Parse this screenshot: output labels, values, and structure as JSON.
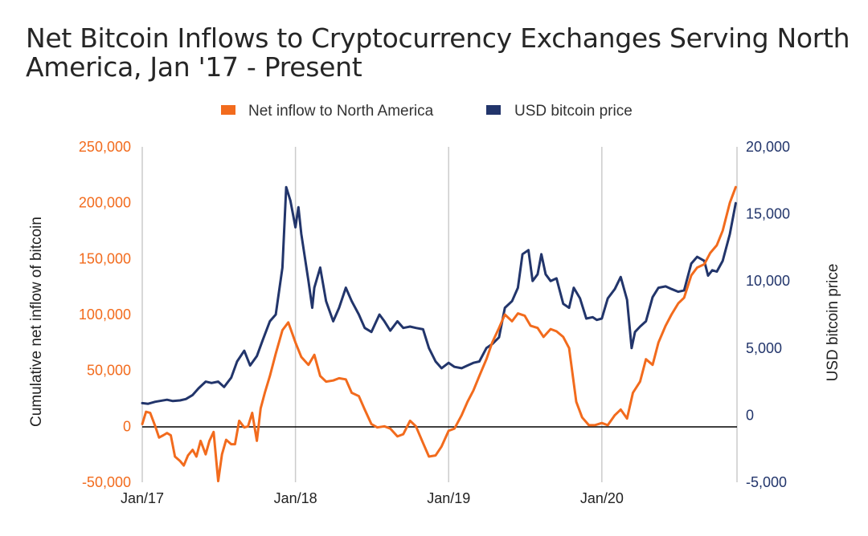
{
  "chart_data": {
    "type": "line",
    "title_lines": [
      "Net Bitcoin Inflows to Cryptocurrency Exchanges Serving North",
      "America, Jan '17 - Present"
    ],
    "x_ticks": [
      "Jan/17",
      "Jan/18",
      "Jan/19",
      "Jan/20"
    ],
    "y_left": {
      "label": "Cumulative net inflow of bitcoin",
      "ticks": [
        "-50,000",
        "0",
        "50,000",
        "100,000",
        "150,000",
        "200,000",
        "250,000"
      ],
      "range": [
        -50000,
        250000
      ]
    },
    "y_right": {
      "label": "USD bitcoin price",
      "ticks": [
        "-5,000",
        "0",
        "5,000",
        "10,000",
        "15,000",
        "20,000"
      ],
      "range": [
        -5000,
        20000
      ]
    },
    "legend_position": "top-center",
    "grid": "vertical",
    "colors": {
      "inflow": "#f26b1d",
      "price": "#22356b",
      "zero_line": "#000000",
      "grid": "#cccccc"
    },
    "series": [
      {
        "name": "Net inflow to North America",
        "axis": "left",
        "points": [
          [
            "2017-01-01",
            2000
          ],
          [
            "2017-01-10",
            13000
          ],
          [
            "2017-01-20",
            12000
          ],
          [
            "2017-02-01",
            0
          ],
          [
            "2017-02-10",
            -10000
          ],
          [
            "2017-02-20",
            -8000
          ],
          [
            "2017-03-01",
            -6000
          ],
          [
            "2017-03-10",
            -8000
          ],
          [
            "2017-03-20",
            -27000
          ],
          [
            "2017-04-01",
            -31000
          ],
          [
            "2017-04-10",
            -35000
          ],
          [
            "2017-04-20",
            -26000
          ],
          [
            "2017-05-01",
            -21000
          ],
          [
            "2017-05-10",
            -27000
          ],
          [
            "2017-05-20",
            -13000
          ],
          [
            "2017-06-01",
            -25000
          ],
          [
            "2017-06-10",
            -13000
          ],
          [
            "2017-06-20",
            -5000
          ],
          [
            "2017-07-01",
            -49000
          ],
          [
            "2017-07-10",
            -25000
          ],
          [
            "2017-07-20",
            -12000
          ],
          [
            "2017-08-01",
            -16000
          ],
          [
            "2017-08-10",
            -16000
          ],
          [
            "2017-08-20",
            5000
          ],
          [
            "2017-09-01",
            -1000
          ],
          [
            "2017-09-10",
            0
          ],
          [
            "2017-09-20",
            12000
          ],
          [
            "2017-10-01",
            -13000
          ],
          [
            "2017-10-10",
            16000
          ],
          [
            "2017-10-20",
            30000
          ],
          [
            "2017-11-01",
            45000
          ],
          [
            "2017-11-15",
            65000
          ],
          [
            "2017-12-01",
            86000
          ],
          [
            "2017-12-15",
            93000
          ],
          [
            "2018-01-01",
            75000
          ],
          [
            "2018-01-15",
            62000
          ],
          [
            "2018-02-01",
            55000
          ],
          [
            "2018-02-15",
            64000
          ],
          [
            "2018-03-01",
            45000
          ],
          [
            "2018-03-15",
            40000
          ],
          [
            "2018-04-01",
            41000
          ],
          [
            "2018-04-15",
            43000
          ],
          [
            "2018-05-01",
            42000
          ],
          [
            "2018-05-15",
            30000
          ],
          [
            "2018-06-01",
            27000
          ],
          [
            "2018-06-15",
            15000
          ],
          [
            "2018-07-01",
            2000
          ],
          [
            "2018-07-15",
            -1000
          ],
          [
            "2018-08-01",
            0
          ],
          [
            "2018-08-15",
            -2000
          ],
          [
            "2018-09-01",
            -9000
          ],
          [
            "2018-09-15",
            -7000
          ],
          [
            "2018-10-01",
            5000
          ],
          [
            "2018-10-15",
            0
          ],
          [
            "2018-11-01",
            -15000
          ],
          [
            "2018-11-15",
            -27000
          ],
          [
            "2018-12-01",
            -26000
          ],
          [
            "2018-12-15",
            -18000
          ],
          [
            "2019-01-01",
            -4000
          ],
          [
            "2019-01-15",
            -2000
          ],
          [
            "2019-02-01",
            10000
          ],
          [
            "2019-02-15",
            22000
          ],
          [
            "2019-03-01",
            32000
          ],
          [
            "2019-03-15",
            45000
          ],
          [
            "2019-04-01",
            60000
          ],
          [
            "2019-04-15",
            75000
          ],
          [
            "2019-05-01",
            88000
          ],
          [
            "2019-05-15",
            100000
          ],
          [
            "2019-06-01",
            94000
          ],
          [
            "2019-06-15",
            101000
          ],
          [
            "2019-07-01",
            99000
          ],
          [
            "2019-07-15",
            90000
          ],
          [
            "2019-08-01",
            88000
          ],
          [
            "2019-08-15",
            80000
          ],
          [
            "2019-09-01",
            87000
          ],
          [
            "2019-09-15",
            85000
          ],
          [
            "2019-10-01",
            80000
          ],
          [
            "2019-10-15",
            70000
          ],
          [
            "2019-11-01",
            22000
          ],
          [
            "2019-11-15",
            8000
          ],
          [
            "2019-12-01",
            1000
          ],
          [
            "2019-12-15",
            1000
          ],
          [
            "2020-01-01",
            3000
          ],
          [
            "2020-01-15",
            1000
          ],
          [
            "2020-02-01",
            10000
          ],
          [
            "2020-02-15",
            15000
          ],
          [
            "2020-03-01",
            7000
          ],
          [
            "2020-03-15",
            30000
          ],
          [
            "2020-04-01",
            40000
          ],
          [
            "2020-04-15",
            60000
          ],
          [
            "2020-05-01",
            55000
          ],
          [
            "2020-05-15",
            75000
          ],
          [
            "2020-06-01",
            90000
          ],
          [
            "2020-06-15",
            100000
          ],
          [
            "2020-07-01",
            110000
          ],
          [
            "2020-07-15",
            115000
          ],
          [
            "2020-08-01",
            135000
          ],
          [
            "2020-08-15",
            142000
          ],
          [
            "2020-09-01",
            145000
          ],
          [
            "2020-09-15",
            155000
          ],
          [
            "2020-10-01",
            162000
          ],
          [
            "2020-10-15",
            175000
          ],
          [
            "2020-11-01",
            200000
          ],
          [
            "2020-11-15",
            214000
          ]
        ]
      },
      {
        "name": "USD bitcoin price",
        "axis": "right",
        "points": [
          [
            "2017-01-01",
            900
          ],
          [
            "2017-01-15",
            850
          ],
          [
            "2017-02-01",
            1000
          ],
          [
            "2017-03-01",
            1150
          ],
          [
            "2017-03-15",
            1050
          ],
          [
            "2017-04-01",
            1100
          ],
          [
            "2017-04-15",
            1200
          ],
          [
            "2017-05-01",
            1500
          ],
          [
            "2017-05-15",
            2000
          ],
          [
            "2017-06-01",
            2500
          ],
          [
            "2017-06-15",
            2400
          ],
          [
            "2017-07-01",
            2500
          ],
          [
            "2017-07-15",
            2100
          ],
          [
            "2017-08-01",
            2800
          ],
          [
            "2017-08-15",
            4000
          ],
          [
            "2017-09-01",
            4800
          ],
          [
            "2017-09-15",
            3700
          ],
          [
            "2017-10-01",
            4400
          ],
          [
            "2017-10-15",
            5600
          ],
          [
            "2017-11-01",
            7000
          ],
          [
            "2017-11-15",
            7500
          ],
          [
            "2017-12-01",
            11000
          ],
          [
            "2017-12-10",
            17000
          ],
          [
            "2017-12-20",
            16000
          ],
          [
            "2018-01-01",
            14000
          ],
          [
            "2018-01-08",
            15500
          ],
          [
            "2018-01-15",
            13500
          ],
          [
            "2018-02-01",
            10000
          ],
          [
            "2018-02-10",
            8000
          ],
          [
            "2018-02-15",
            9500
          ],
          [
            "2018-03-01",
            11000
          ],
          [
            "2018-03-15",
            8500
          ],
          [
            "2018-04-01",
            7000
          ],
          [
            "2018-04-15",
            8000
          ],
          [
            "2018-05-01",
            9500
          ],
          [
            "2018-05-15",
            8500
          ],
          [
            "2018-06-01",
            7500
          ],
          [
            "2018-06-15",
            6500
          ],
          [
            "2018-07-01",
            6200
          ],
          [
            "2018-07-20",
            7500
          ],
          [
            "2018-08-01",
            7000
          ],
          [
            "2018-08-15",
            6300
          ],
          [
            "2018-09-01",
            7000
          ],
          [
            "2018-09-15",
            6500
          ],
          [
            "2018-10-01",
            6600
          ],
          [
            "2018-10-15",
            6500
          ],
          [
            "2018-11-01",
            6400
          ],
          [
            "2018-11-15",
            5000
          ],
          [
            "2018-12-01",
            4000
          ],
          [
            "2018-12-15",
            3500
          ],
          [
            "2019-01-01",
            3900
          ],
          [
            "2019-01-15",
            3600
          ],
          [
            "2019-02-01",
            3500
          ],
          [
            "2019-02-15",
            3700
          ],
          [
            "2019-03-01",
            3900
          ],
          [
            "2019-03-15",
            4000
          ],
          [
            "2019-04-01",
            5000
          ],
          [
            "2019-04-15",
            5300
          ],
          [
            "2019-05-01",
            5800
          ],
          [
            "2019-05-15",
            8000
          ],
          [
            "2019-06-01",
            8500
          ],
          [
            "2019-06-15",
            9500
          ],
          [
            "2019-06-26",
            12000
          ],
          [
            "2019-07-10",
            12300
          ],
          [
            "2019-07-20",
            10000
          ],
          [
            "2019-08-01",
            10500
          ],
          [
            "2019-08-10",
            12000
          ],
          [
            "2019-08-20",
            10500
          ],
          [
            "2019-09-01",
            10000
          ],
          [
            "2019-09-15",
            10200
          ],
          [
            "2019-10-01",
            8300
          ],
          [
            "2019-10-15",
            8000
          ],
          [
            "2019-10-26",
            9500
          ],
          [
            "2019-11-10",
            8700
          ],
          [
            "2019-11-25",
            7200
          ],
          [
            "2019-12-10",
            7300
          ],
          [
            "2019-12-20",
            7100
          ],
          [
            "2020-01-01",
            7200
          ],
          [
            "2020-01-15",
            8700
          ],
          [
            "2020-02-01",
            9400
          ],
          [
            "2020-02-15",
            10300
          ],
          [
            "2020-03-01",
            8600
          ],
          [
            "2020-03-12",
            5000
          ],
          [
            "2020-03-20",
            6200
          ],
          [
            "2020-04-01",
            6600
          ],
          [
            "2020-04-15",
            7000
          ],
          [
            "2020-05-01",
            8800
          ],
          [
            "2020-05-15",
            9500
          ],
          [
            "2020-06-01",
            9600
          ],
          [
            "2020-06-15",
            9400
          ],
          [
            "2020-07-01",
            9200
          ],
          [
            "2020-07-15",
            9300
          ],
          [
            "2020-08-01",
            11300
          ],
          [
            "2020-08-15",
            11800
          ],
          [
            "2020-09-01",
            11500
          ],
          [
            "2020-09-10",
            10400
          ],
          [
            "2020-09-20",
            10800
          ],
          [
            "2020-10-01",
            10700
          ],
          [
            "2020-10-15",
            11500
          ],
          [
            "2020-11-01",
            13500
          ],
          [
            "2020-11-15",
            15800
          ]
        ]
      }
    ]
  }
}
